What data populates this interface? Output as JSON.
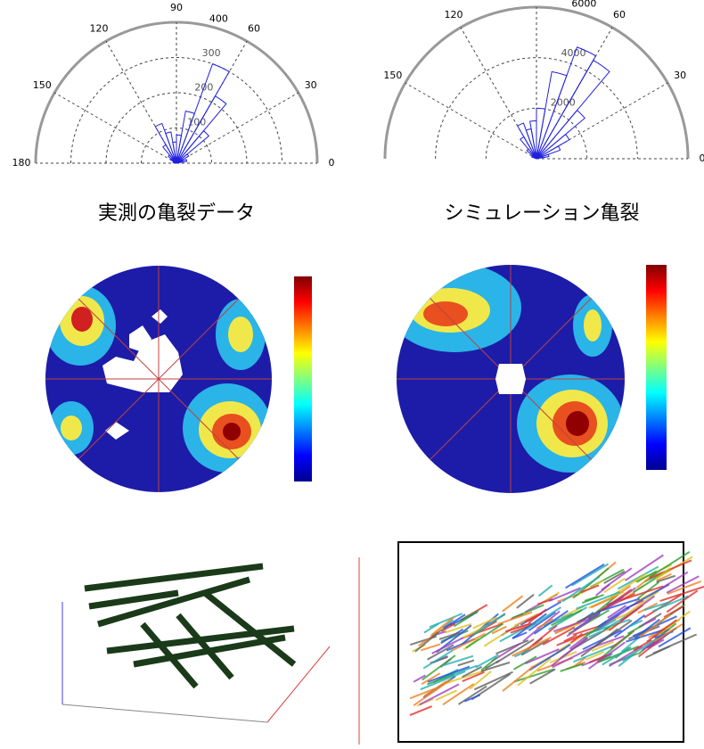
{
  "panels": [
    {
      "angle_ticks": [
        0,
        30,
        60,
        90,
        120,
        150,
        180
      ],
      "radius_ticks": [
        100,
        200,
        300,
        400
      ],
      "petals": [
        [
          10,
          30
        ],
        [
          20,
          20
        ],
        [
          30,
          40
        ],
        [
          40,
          120
        ],
        [
          50,
          220
        ],
        [
          60,
          300
        ],
        [
          70,
          150
        ],
        [
          80,
          80
        ],
        [
          90,
          60
        ],
        [
          100,
          90
        ],
        [
          110,
          120
        ],
        [
          120,
          60
        ],
        [
          130,
          30
        ],
        [
          140,
          20
        ],
        [
          160,
          10
        ]
      ],
      "caption": "実測の亀裂データ"
    },
    {
      "angle_ticks": [
        0,
        30,
        60,
        90,
        120,
        150
      ],
      "radius_ticks": [
        2000,
        4000,
        6000
      ],
      "petals": [
        [
          10,
          500
        ],
        [
          20,
          1000
        ],
        [
          30,
          1500
        ],
        [
          40,
          2500
        ],
        [
          50,
          4500
        ],
        [
          60,
          4700
        ],
        [
          70,
          3500
        ],
        [
          80,
          2000
        ],
        [
          90,
          1500
        ],
        [
          100,
          1200
        ],
        [
          110,
          1500
        ],
        [
          120,
          1000
        ],
        [
          130,
          500
        ],
        [
          150,
          200
        ]
      ],
      "caption": "シミュレーション亀裂"
    }
  ]
}
